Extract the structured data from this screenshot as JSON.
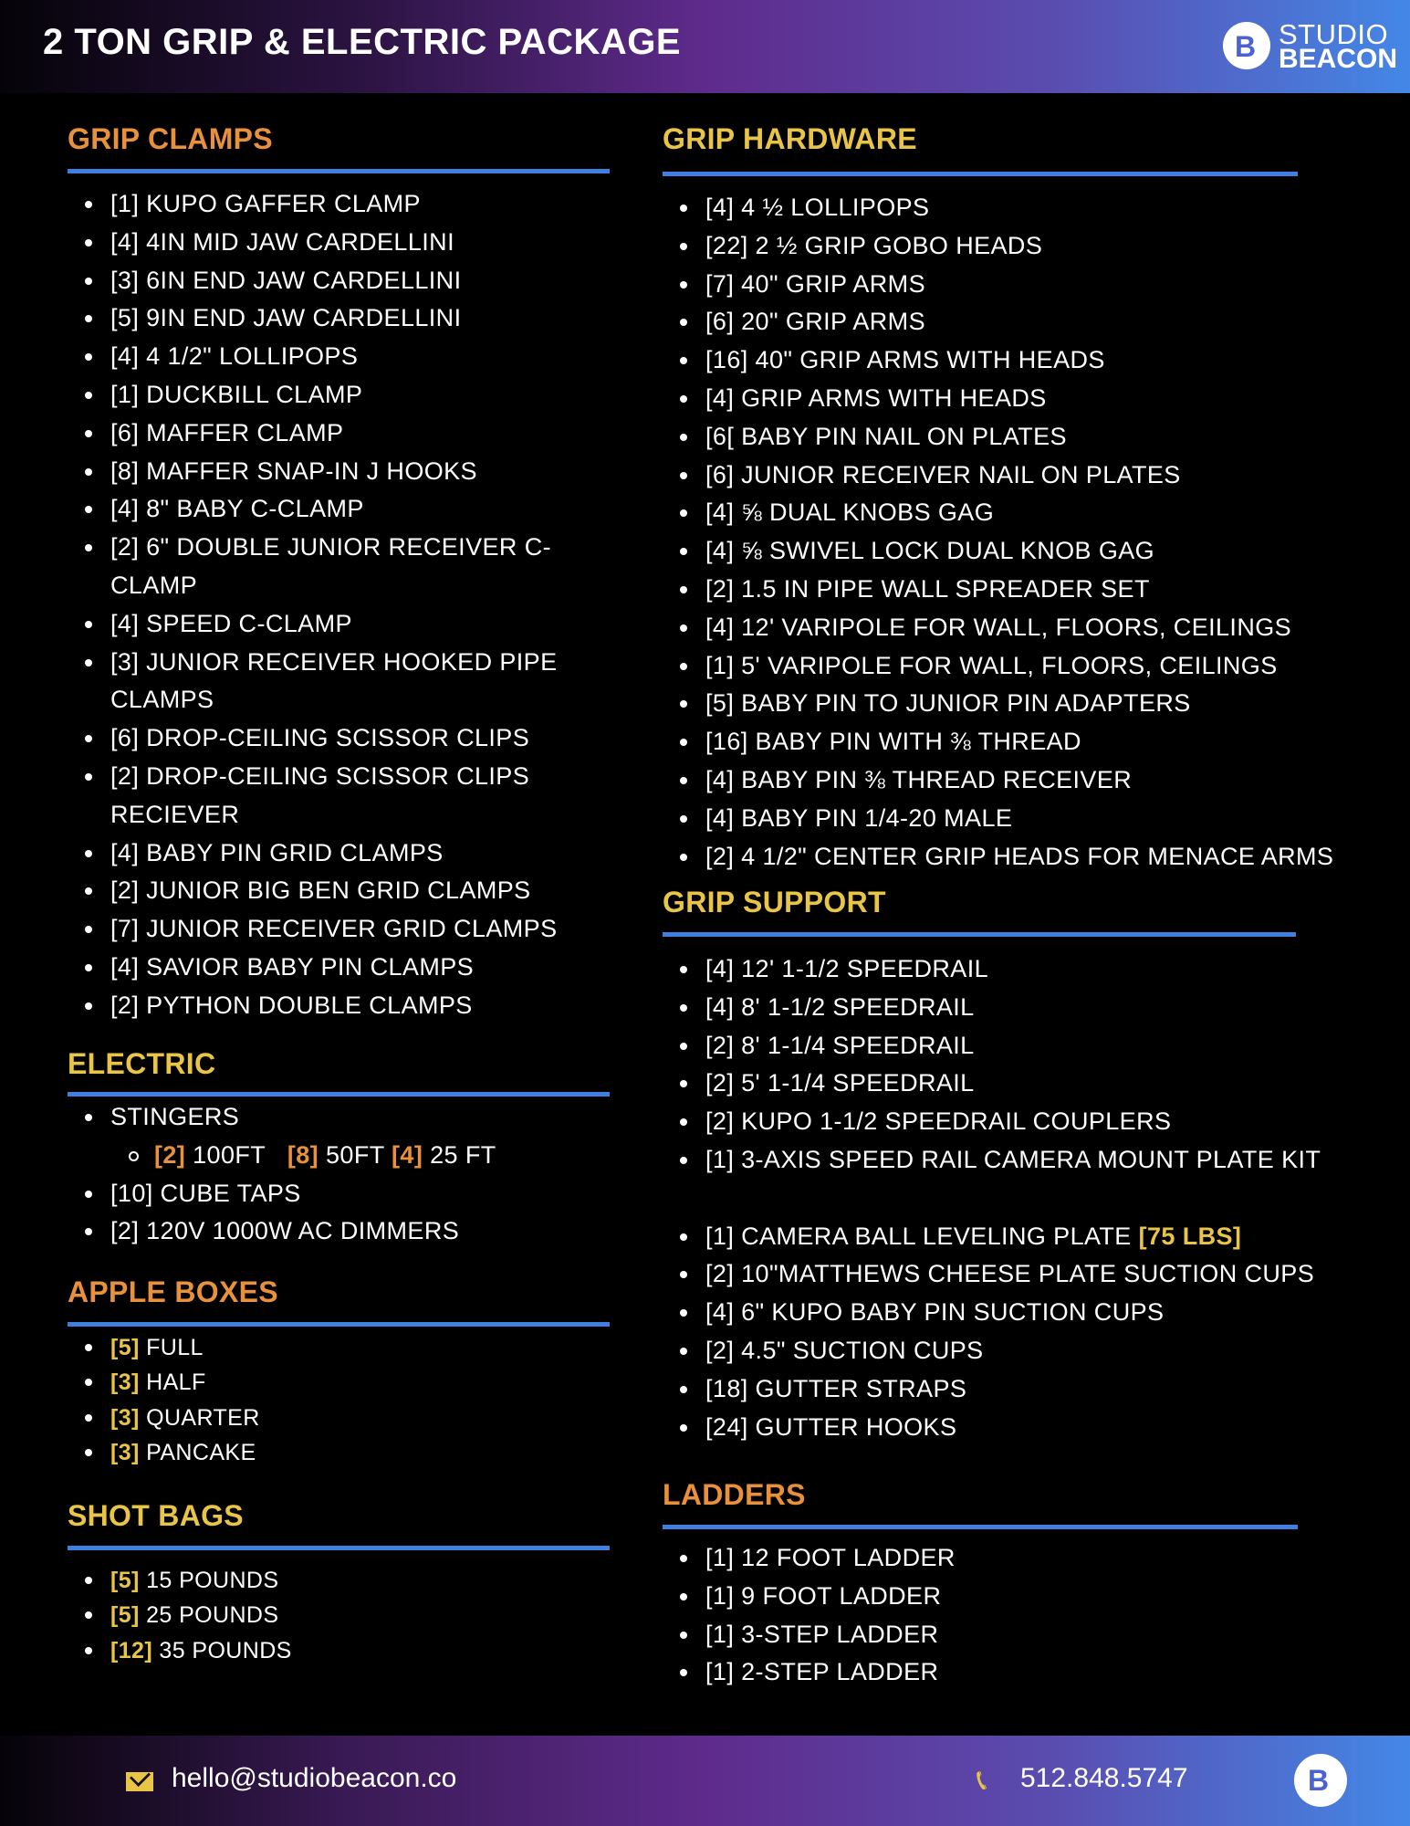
{
  "header": {
    "title": "2 TON GRIP & ELECTRIC PACKAGE",
    "logo": {
      "line1": "STUDIO",
      "line2": "BEACON",
      "mark": "B"
    }
  },
  "colors": {
    "orange": "#E8913A",
    "yellow": "#E8C547",
    "rule": "#3F7FE0"
  },
  "sections": {
    "grip_clamps": {
      "title": "GRIP CLAMPS",
      "color": "orange",
      "items": [
        "[1] KUPO GAFFER CLAMP",
        "[4] 4IN MID JAW CARDELLINI",
        "[3] 6IN END JAW CARDELLINI",
        "[5] 9IN END JAW CARDELLINI",
        "[4] 4 1/2\" LOLLIPOPS",
        "[1] DUCKBILL CLAMP",
        "[6] MAFFER CLAMP",
        "[8] MAFFER SNAP-IN J HOOKS",
        "[4] 8\" BABY C-CLAMP",
        "[2] 6\" DOUBLE JUNIOR RECEIVER C-CLAMP",
        "[4] SPEED C-CLAMP",
        "[3] JUNIOR RECEIVER HOOKED PIPE CLAMPS",
        "[6] DROP-CEILING SCISSOR CLIPS",
        "[2] DROP-CEILING SCISSOR CLIPS RECIEVER",
        "[4] BABY PIN GRID CLAMPS",
        "[2] JUNIOR BIG BEN GRID CLAMPS",
        "[7] JUNIOR RECEIVER GRID CLAMPS",
        "[4] SAVIOR BABY PIN CLAMPS",
        "[2] PYTHON DOUBLE CLAMPS"
      ]
    },
    "electric": {
      "title": "ELECTRIC",
      "color": "yellow",
      "stingers": {
        "label": "STINGERS",
        "sub": [
          {
            "qty": "[2]",
            "label": "100FT"
          },
          {
            "qty": "[8]",
            "label": "50FT"
          },
          {
            "qty": "[4]",
            "label": "25 FT"
          }
        ]
      },
      "items": [
        "[10] CUBE TAPS",
        "[2] 120V 1000W AC DIMMERS"
      ]
    },
    "apple_boxes": {
      "title": "APPLE BOXES",
      "color": "orange",
      "items": [
        {
          "qty": "[5]",
          "label": "FULL"
        },
        {
          "qty": "[3]",
          "label": "HALF"
        },
        {
          "qty": "[3]",
          "label": "QUARTER"
        },
        {
          "qty": "[3]",
          "label": "PANCAKE"
        }
      ]
    },
    "shot_bags": {
      "title": "SHOT BAGS",
      "color": "yellow",
      "items": [
        {
          "qty": "[5]",
          "label": "15 POUNDS"
        },
        {
          "qty": "[5]",
          "label": "25 POUNDS"
        },
        {
          "qty": "[12]",
          "label": "35 POUNDS"
        }
      ]
    },
    "grip_hardware": {
      "title": "GRIP HARDWARE",
      "color": "yellow",
      "items": [
        "[4] 4 ½ LOLLIPOPS",
        "[22] 2 ½ GRIP GOBO HEADS",
        "[7] 40\" GRIP ARMS",
        "[6] 20\" GRIP ARMS",
        "[16] 40\" GRIP ARMS WITH HEADS",
        "[4] GRIP ARMS WITH HEADS",
        "[6[ BABY PIN NAIL ON PLATES",
        "[6] JUNIOR RECEIVER NAIL ON PLATES",
        "[4] ⅝ DUAL KNOBS GAG",
        "[4] ⅝ SWIVEL LOCK DUAL KNOB GAG",
        "[2] 1.5 IN PIPE WALL SPREADER SET",
        "[4] 12' VARIPOLE FOR WALL, FLOORS, CEILINGS",
        "[1] 5' VARIPOLE FOR WALL, FLOORS, CEILINGS",
        "[5] BABY PIN TO JUNIOR PIN ADAPTERS",
        "[16] BABY PIN WITH ⅜ THREAD",
        "[4] BABY PIN ⅜ THREAD RECEIVER",
        "[4] BABY PIN 1/4-20 MALE",
        "[2] 4 1/2\" CENTER GRIP HEADS FOR MENACE ARMS"
      ]
    },
    "grip_support": {
      "title": "GRIP SUPPORT",
      "color": "yellow",
      "items": [
        "[4] 12' 1-1/2 SPEEDRAIL",
        "[4] 8' 1-1/2 SPEEDRAIL",
        "[2] 8' 1-1/4 SPEEDRAIL",
        "[2] 5' 1-1/4 SPEEDRAIL",
        "[2] KUPO 1-1/2 SPEEDRAIL COUPLERS",
        "[1] 3-AXIS SPEED RAIL CAMERA MOUNT PLATE KIT"
      ],
      "camera_plate": {
        "label": "[1] CAMERA BALL LEVELING PLATE",
        "note": "[75 LBS]"
      },
      "items2": [
        "[2] 10\"MATTHEWS CHEESE PLATE SUCTION CUPS",
        "[4] 6\" KUPO BABY PIN SUCTION CUPS",
        "[2] 4.5\" SUCTION CUPS",
        "[18] GUTTER STRAPS",
        "[24] GUTTER HOOKS"
      ]
    },
    "ladders": {
      "title": "LADDERS",
      "color": "orange",
      "items": [
        "[1] 12 FOOT LADDER",
        "[1] 9 FOOT LADDER",
        "[1] 3-STEP LADDER",
        "[1] 2-STEP LADDER"
      ]
    }
  },
  "footer": {
    "email": "hello@studiobeacon.co",
    "phone": "512.848.5747",
    "email_icon": "envelope-icon",
    "phone_icon": "phone-icon",
    "logo_mark": "B"
  }
}
